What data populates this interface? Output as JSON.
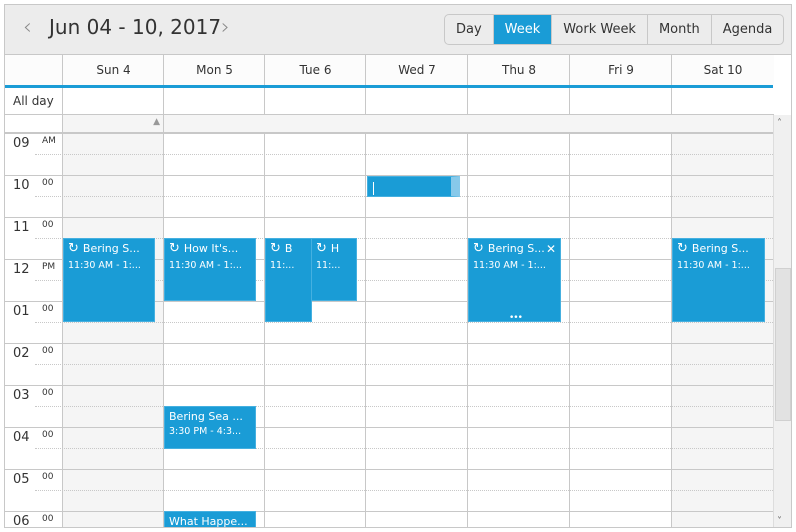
{
  "header": {
    "title": "Jun 04 - 10, 2017",
    "prev_icon": "chevron-left",
    "next_icon": "chevron-right",
    "views": [
      {
        "label": "Day",
        "active": false
      },
      {
        "label": "Week",
        "active": true
      },
      {
        "label": "Work Week",
        "active": false
      },
      {
        "label": "Month",
        "active": false
      },
      {
        "label": "Agenda",
        "active": false
      }
    ]
  },
  "days": [
    "Sun 4",
    "Mon 5",
    "Tue 6",
    "Wed 7",
    "Thu 8",
    "Fri 9",
    "Sat 10"
  ],
  "allday_label": "All day",
  "times": [
    {
      "h": "09",
      "m": "AM"
    },
    {
      "h": "10",
      "m": "00"
    },
    {
      "h": "11",
      "m": "00"
    },
    {
      "h": "12",
      "m": "PM"
    },
    {
      "h": "01",
      "m": "00"
    },
    {
      "h": "02",
      "m": "00"
    },
    {
      "h": "03",
      "m": "00"
    },
    {
      "h": "04",
      "m": "00"
    },
    {
      "h": "05",
      "m": "00"
    },
    {
      "h": "06",
      "m": "00"
    }
  ],
  "events": [
    {
      "title": "Bering S...",
      "time": "11:30 AM - 1:...",
      "recurring": true
    },
    {
      "title": "How It's...",
      "time": "11:30 AM - 1:...",
      "recurring": true
    },
    {
      "title": "B",
      "time": "11:...",
      "recurring": true
    },
    {
      "title": "H",
      "time": "11:...",
      "recurring": true
    },
    {
      "title": "Bering S...",
      "time": "11:30 AM - 1:...",
      "recurring": true,
      "selected": true
    },
    {
      "title": "Bering S...",
      "time": "11:30 AM - 1:...",
      "recurring": true
    },
    {
      "title": "Bering Sea ...",
      "time": "3:30 PM - 4:3...",
      "recurring": false
    },
    {
      "title": "What Happe...",
      "time": "",
      "recurring": false
    },
    {
      "title": "",
      "time": "",
      "editing": true
    }
  ],
  "colors": {
    "accent": "#1a9cd6",
    "header_bg": "#ececec",
    "weekend_bg": "#f5f5f5"
  }
}
